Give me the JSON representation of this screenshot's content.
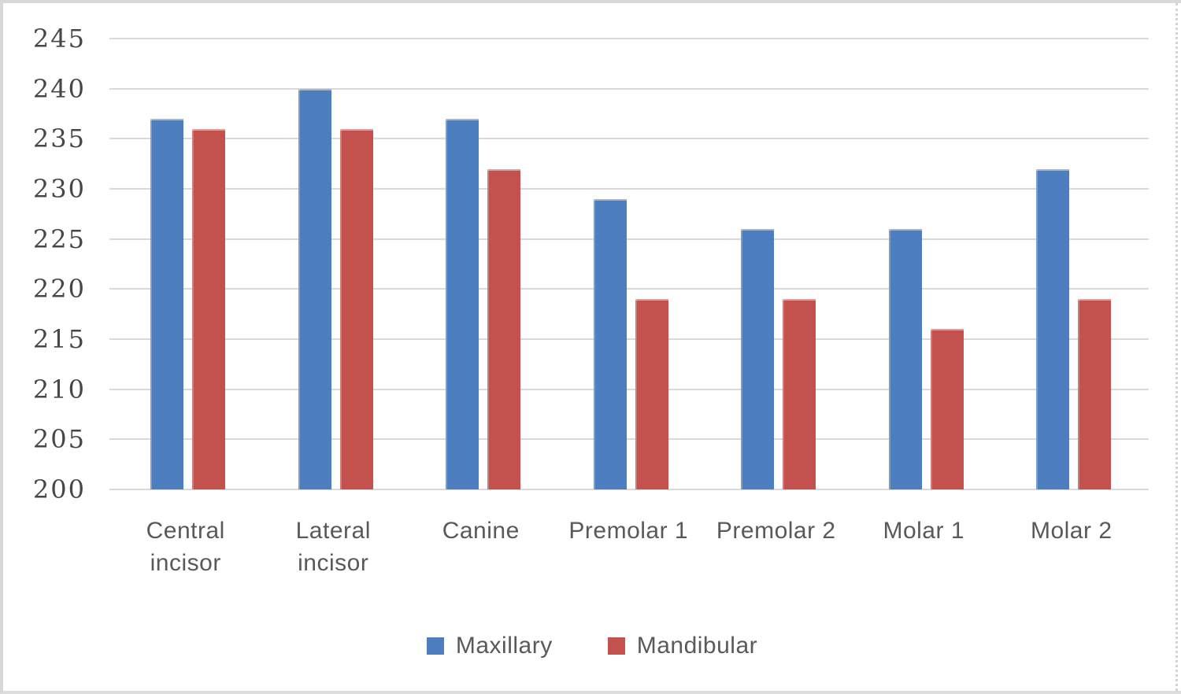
{
  "chart_data": {
    "type": "bar",
    "categories": [
      "Central\nincisor",
      "Lateral\nincisor",
      "Canine",
      "Premolar 1",
      "Premolar 2",
      "Molar 1",
      "Molar 2"
    ],
    "series": [
      {
        "name": "Maxillary",
        "color": "#4D7EBF",
        "values": [
          237,
          240,
          237,
          229,
          226,
          226,
          232
        ]
      },
      {
        "name": "Mandibular",
        "color": "#C3514E",
        "values": [
          236,
          236,
          232,
          219,
          219,
          216,
          219
        ]
      }
    ],
    "title": "",
    "xlabel": "",
    "ylabel": "",
    "ylim": [
      200,
      245
    ],
    "ytick_step": 5,
    "yticks": [
      245,
      240,
      235,
      230,
      225,
      220,
      215,
      210,
      205,
      200
    ],
    "grid": true,
    "gridline_color": "#d9d9d9",
    "legend_position": "bottom"
  }
}
